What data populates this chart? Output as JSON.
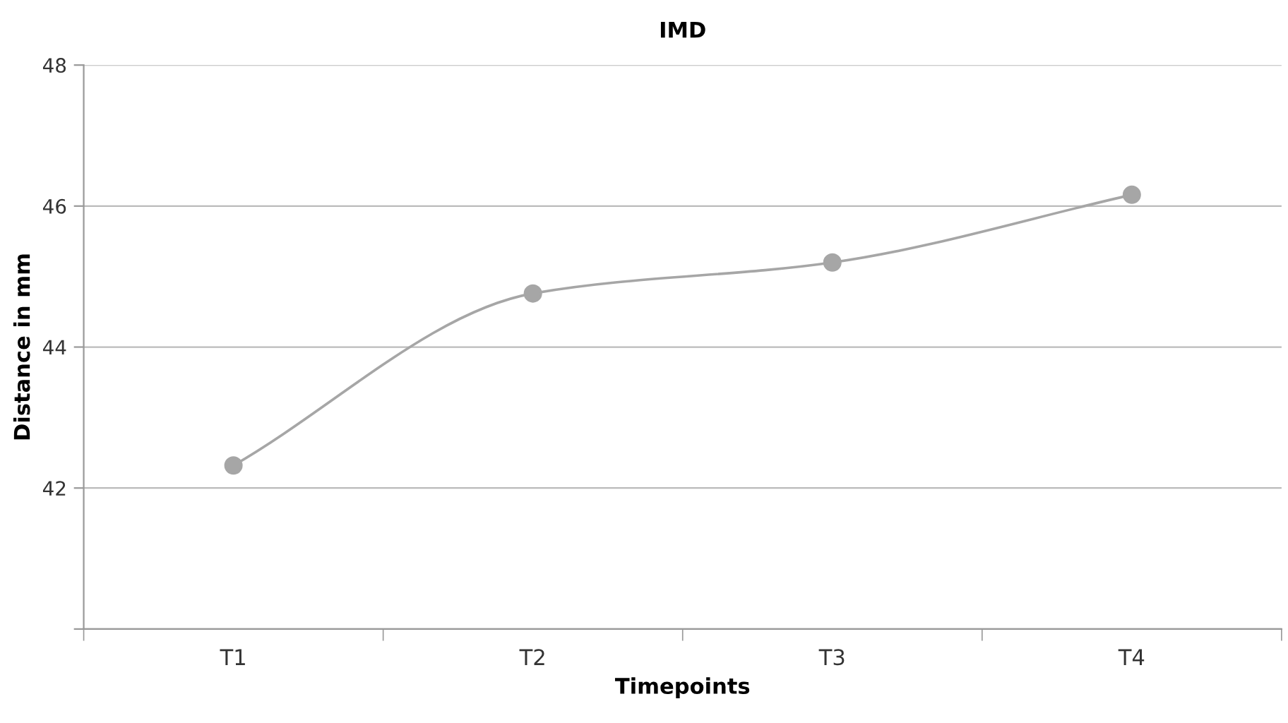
{
  "chart_data": {
    "type": "line",
    "title": "IMD",
    "xlabel": "Timepoints",
    "ylabel": "Distance in mm",
    "categories": [
      "T1",
      "T2",
      "T3",
      "T4"
    ],
    "series": [
      {
        "color": "#a6a6a6",
        "values": [
          42.32,
          44.76,
          45.2,
          46.16
        ]
      }
    ],
    "ylim": [
      40,
      48
    ],
    "yticks": [
      {
        "value": 40,
        "label": null
      },
      42,
      44,
      46,
      48
    ],
    "grid": "y",
    "marker": "circle",
    "line_style": "solid"
  }
}
